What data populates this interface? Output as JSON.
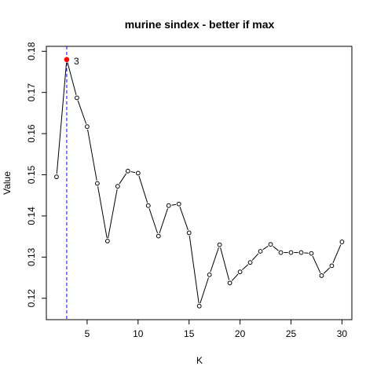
{
  "chart_data": {
    "type": "line",
    "title": "murine sindex - better if  max",
    "xlabel": "K",
    "ylabel": "Value",
    "xlim": [
      1.0,
      30.97
    ],
    "ylim": [
      0.1148,
      0.1812
    ],
    "xticks": [
      5,
      10,
      15,
      20,
      25,
      30
    ],
    "yticks": [
      0.12,
      0.13,
      0.14,
      0.15,
      0.16,
      0.17,
      0.18
    ],
    "ytick_labels": [
      "0.12",
      "0.13",
      "0.14",
      "0.15",
      "0.16",
      "0.17",
      "0.18"
    ],
    "x": [
      2,
      3,
      4,
      5,
      6,
      7,
      8,
      9,
      10,
      11,
      12,
      13,
      14,
      15,
      16,
      17,
      18,
      19,
      20,
      21,
      22,
      23,
      24,
      25,
      26,
      27,
      28,
      29,
      30
    ],
    "values": [
      0.1495,
      0.178,
      0.1687,
      0.1617,
      0.1479,
      0.1339,
      0.1472,
      0.1509,
      0.1504,
      0.1425,
      0.1351,
      0.1425,
      0.1429,
      0.1359,
      0.1181,
      0.1257,
      0.133,
      0.1237,
      0.1264,
      0.1287,
      0.1314,
      0.1331,
      0.1311,
      0.1311,
      0.1311,
      0.1309,
      0.1255,
      0.1279,
      0.1337
    ],
    "highlight": {
      "x": 3,
      "value": 0.178,
      "label": "3",
      "color": "#ff0000"
    },
    "vline": {
      "x": 3,
      "color": "#0000ff",
      "style": "dashed"
    },
    "grid": false,
    "line_color": "#000000"
  }
}
